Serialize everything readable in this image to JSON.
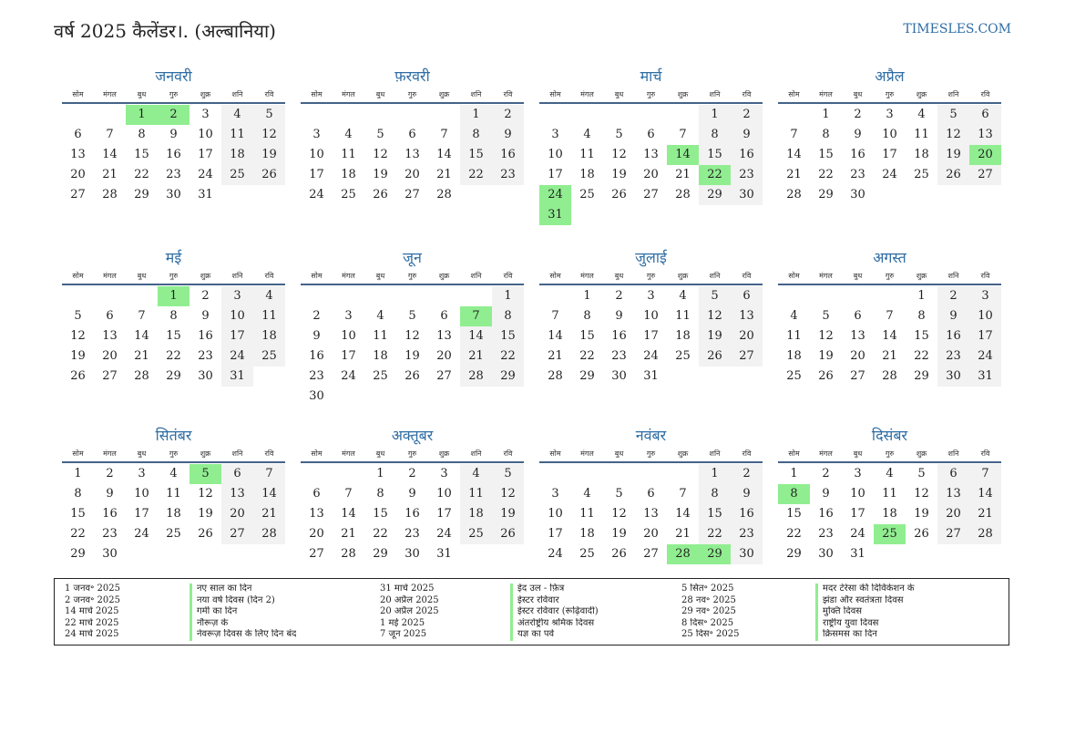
{
  "header": {
    "title": "वर्ष 2025 कैलेंडर।. (अल्बानिया)",
    "site": "TIMESLES.COM"
  },
  "weekdays": [
    "सोम",
    "मंगल",
    "बुध",
    "गुरु",
    "शुक्र",
    "शनि",
    "रवि"
  ],
  "months": [
    {
      "name": "जनवरी",
      "offset": 2,
      "days": 31,
      "holidays": [
        1,
        2
      ]
    },
    {
      "name": "फ़रवरी",
      "offset": 5,
      "days": 28,
      "holidays": []
    },
    {
      "name": "मार्च",
      "offset": 5,
      "days": 31,
      "holidays": [
        14,
        22,
        24,
        31
      ]
    },
    {
      "name": "अप्रैल",
      "offset": 1,
      "days": 30,
      "holidays": [
        20
      ]
    },
    {
      "name": "मई",
      "offset": 3,
      "days": 31,
      "holidays": [
        1
      ]
    },
    {
      "name": "जून",
      "offset": 6,
      "days": 30,
      "holidays": [
        7
      ]
    },
    {
      "name": "जुलाई",
      "offset": 1,
      "days": 31,
      "holidays": []
    },
    {
      "name": "अगस्त",
      "offset": 4,
      "days": 31,
      "holidays": []
    },
    {
      "name": "सितंबर",
      "offset": 0,
      "days": 30,
      "holidays": [
        5
      ]
    },
    {
      "name": "अक्तूबर",
      "offset": 2,
      "days": 31,
      "holidays": []
    },
    {
      "name": "नवंबर",
      "offset": 5,
      "days": 30,
      "holidays": [
        28,
        29
      ]
    },
    {
      "name": "दिसंबर",
      "offset": 0,
      "days": 31,
      "holidays": [
        8,
        25
      ]
    }
  ],
  "holidays": [
    {
      "date": "1 जनव॰ 2025",
      "name": "नए साल का दिन"
    },
    {
      "date": "2 जनव॰ 2025",
      "name": "नया वर्ष दिवस (दिन 2)"
    },
    {
      "date": "14 मार्च 2025",
      "name": "गर्मी का दिन"
    },
    {
      "date": "22 मार्च 2025",
      "name": "नौरूज़ के"
    },
    {
      "date": "24 मार्च 2025",
      "name": "नेवरूज़ दिवस के लिए दिन बंद"
    },
    {
      "date": "31 मार्च 2025",
      "name": "ईद उल - फ़ित्र"
    },
    {
      "date": "20 अप्रैल 2025",
      "name": "ईस्टर रविवार"
    },
    {
      "date": "20 अप्रैल 2025",
      "name": "ईस्टर रविवार (रूढ़िवादी)"
    },
    {
      "date": "1 मई 2025",
      "name": "अंतर्राष्ट्रीय श्रमिक दिवस"
    },
    {
      "date": "7 जून 2025",
      "name": "यज्ञ का पर्व"
    },
    {
      "date": "5 सित॰ 2025",
      "name": "मदर टेरेसा की दिविकेशन के"
    },
    {
      "date": "28 नव॰ 2025",
      "name": "झंडा और स्वतंत्रता दिवस"
    },
    {
      "date": "29 नव॰ 2025",
      "name": "मुक्ति दिवस"
    },
    {
      "date": "8 दिस॰ 2025",
      "name": "राष्ट्रीय युवा दिवस"
    },
    {
      "date": "25 दिस॰ 2025",
      "name": "क्रिसमस का दिन"
    }
  ]
}
